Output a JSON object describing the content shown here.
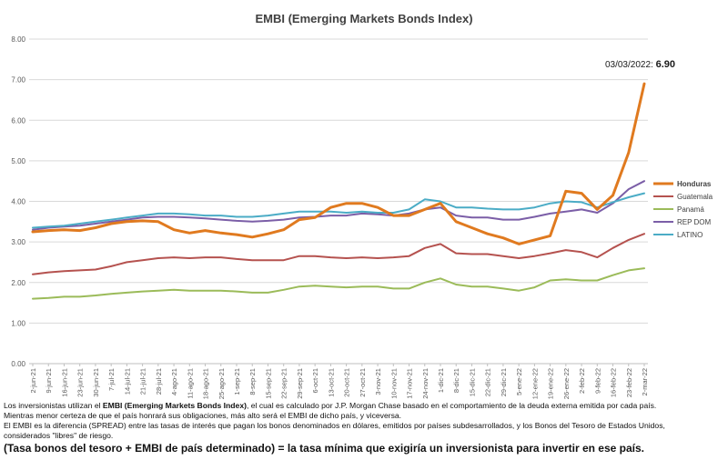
{
  "chart_data": {
    "type": "line",
    "title": "EMBI (Emerging Markets Bonds Index)",
    "ylim": [
      0,
      8
    ],
    "yticks": [
      "0.00",
      "1.00",
      "2.00",
      "3.00",
      "4.00",
      "5.00",
      "6.00",
      "7.00",
      "8.00"
    ],
    "categories": [
      "2-jun-21",
      "9-jun-21",
      "16-jun-21",
      "23-jun-21",
      "30-jun-21",
      "7-jul-21",
      "14-jul-21",
      "21-jul-21",
      "28-jul-21",
      "4-ago-21",
      "11-ago-21",
      "18-ago-21",
      "25-ago-21",
      "1-sep-21",
      "8-sep-21",
      "15-sep-21",
      "22-sep-21",
      "29-sep-21",
      "6-oct-21",
      "13-oct-21",
      "20-oct-21",
      "27-oct-21",
      "3-nov-21",
      "10-nov-21",
      "17-nov-21",
      "24-nov-21",
      "1-dic-21",
      "8-dic-21",
      "15-dic-21",
      "22-dic-21",
      "29-dic-21",
      "5-ene-22",
      "12-ene-22",
      "19-ene-22",
      "26-ene-22",
      "2-feb-22",
      "9-feb-22",
      "16-feb-22",
      "23-feb-22",
      "2-mar-22"
    ],
    "grid": true,
    "legend_placement": "right",
    "series": [
      {
        "name": "Honduras",
        "color": "#E07A1F",
        "bold": true,
        "values": [
          3.25,
          3.28,
          3.3,
          3.28,
          3.35,
          3.45,
          3.5,
          3.52,
          3.5,
          3.3,
          3.22,
          3.28,
          3.22,
          3.18,
          3.12,
          3.2,
          3.3,
          3.55,
          3.6,
          3.85,
          3.95,
          3.95,
          3.85,
          3.65,
          3.65,
          3.8,
          3.95,
          3.5,
          3.35,
          3.2,
          3.1,
          2.95,
          3.05,
          3.15,
          4.25,
          4.2,
          3.8,
          4.15,
          5.2,
          6.9
        ]
      },
      {
        "name": "Guatemala",
        "color": "#B5524F",
        "values": [
          2.2,
          2.25,
          2.28,
          2.3,
          2.32,
          2.4,
          2.5,
          2.55,
          2.6,
          2.62,
          2.6,
          2.62,
          2.62,
          2.58,
          2.55,
          2.55,
          2.55,
          2.65,
          2.65,
          2.62,
          2.6,
          2.62,
          2.6,
          2.62,
          2.65,
          2.85,
          2.95,
          2.72,
          2.7,
          2.7,
          2.65,
          2.6,
          2.65,
          2.72,
          2.8,
          2.75,
          2.62,
          2.85,
          3.05,
          3.2
        ]
      },
      {
        "name": "Panamá",
        "color": "#9BBB59",
        "values": [
          1.6,
          1.62,
          1.65,
          1.65,
          1.68,
          1.72,
          1.75,
          1.78,
          1.8,
          1.82,
          1.8,
          1.8,
          1.8,
          1.78,
          1.75,
          1.75,
          1.82,
          1.9,
          1.92,
          1.9,
          1.88,
          1.9,
          1.9,
          1.85,
          1.85,
          2.0,
          2.1,
          1.95,
          1.9,
          1.9,
          1.85,
          1.8,
          1.88,
          2.05,
          2.08,
          2.05,
          2.05,
          2.18,
          2.3,
          2.35
        ]
      },
      {
        "name": "REP DOM",
        "color": "#7B5EA7",
        "values": [
          3.3,
          3.35,
          3.38,
          3.4,
          3.45,
          3.5,
          3.55,
          3.6,
          3.62,
          3.62,
          3.6,
          3.58,
          3.55,
          3.52,
          3.5,
          3.52,
          3.55,
          3.6,
          3.62,
          3.65,
          3.65,
          3.7,
          3.68,
          3.65,
          3.7,
          3.8,
          3.85,
          3.65,
          3.6,
          3.6,
          3.55,
          3.55,
          3.62,
          3.7,
          3.75,
          3.8,
          3.72,
          3.95,
          4.3,
          4.5
        ]
      },
      {
        "name": "LATINO",
        "color": "#4BACC6",
        "values": [
          3.35,
          3.38,
          3.4,
          3.45,
          3.5,
          3.55,
          3.6,
          3.65,
          3.7,
          3.7,
          3.68,
          3.65,
          3.65,
          3.62,
          3.62,
          3.65,
          3.7,
          3.75,
          3.75,
          3.75,
          3.72,
          3.75,
          3.72,
          3.72,
          3.8,
          4.05,
          4.0,
          3.85,
          3.85,
          3.82,
          3.8,
          3.8,
          3.85,
          3.95,
          4.0,
          3.98,
          3.85,
          3.98,
          4.1,
          4.2
        ]
      }
    ],
    "annotation": {
      "date": "03/03/2022:",
      "value": "6.90"
    }
  },
  "notes": {
    "line1_pre": "Los inversionistas utilizan el ",
    "line1_bold": "EMBI (Emerging Markets Bonds Index)",
    "line1_post": ", el cual es calculado por J.P. Morgan Chase basado en el comportamiento de la deuda externa emitida por cada país.",
    "line2": "Mientras menor certeza de que el país honrará sus obligaciones, más alto será el EMBI de dicho país, y viceversa.",
    "line3": "El EMBI es la diferencia (SPREAD) entre las tasas de interés que pagan los bonos denominados en dólares, emitidos por países subdesarrollados, y los Bonos del Tesoro de Estados Unidos,",
    "line4": "considerados \"libres\" de riesgo.",
    "line5": "(Tasa bonos del tesoro + EMBI de país determinado) = la tasa mínima que exigiría un inversionista para invertir en ese país."
  }
}
